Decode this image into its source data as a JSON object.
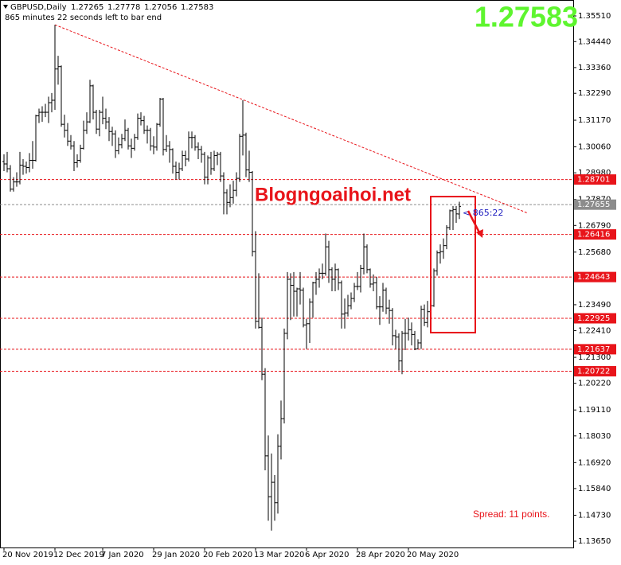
{
  "chart_data": {
    "type": "ohlc",
    "symbol": "GBPUSD,Daily",
    "timer_text": "865 minutes 22 seconds left to bar end",
    "countdown": "< 865:22",
    "watermark": "Blogngoaihoi.net",
    "spread_text": "Spread: 11 points.",
    "bar_color": "#000000",
    "price_color": "#5ef52f",
    "categories": [
      "20 Nov 2019",
      null,
      null,
      null,
      null,
      null,
      null,
      null,
      null,
      null,
      null,
      null,
      null,
      null,
      null,
      null,
      "12 Dec 2019",
      null,
      null,
      null,
      null,
      null,
      null,
      null,
      null,
      null,
      null,
      null,
      null,
      null,
      null,
      "7 Jan 2020",
      null,
      null,
      null,
      null,
      null,
      null,
      null,
      null,
      null,
      null,
      null,
      null,
      null,
      null,
      null,
      "29 Jan 2020",
      null,
      null,
      null,
      null,
      null,
      null,
      null,
      null,
      null,
      null,
      null,
      null,
      null,
      null,
      null,
      "20 Feb 2020",
      null,
      null,
      null,
      null,
      null,
      null,
      null,
      null,
      null,
      null,
      null,
      null,
      null,
      null,
      null,
      "13 Mar 2020",
      null,
      null,
      null,
      null,
      null,
      null,
      null,
      null,
      null,
      null,
      null,
      null,
      null,
      null,
      null,
      "6 Apr 2020",
      null,
      null,
      null,
      null,
      null,
      null,
      null,
      null,
      null,
      null,
      null,
      null,
      null,
      null,
      null,
      "28 Apr 2020",
      null,
      null,
      null,
      null,
      null,
      null,
      null,
      null,
      null,
      null,
      null,
      null,
      null,
      null,
      null,
      "20 May 2020",
      null,
      null,
      null,
      null,
      null,
      null,
      null,
      null,
      null,
      null,
      null,
      null,
      null,
      null,
      null,
      null
    ],
    "open": [
      1.2945,
      1.2935,
      1.2915,
      1.283,
      1.286,
      1.286,
      1.293,
      1.2925,
      1.292,
      1.295,
      1.295,
      1.3135,
      1.315,
      1.315,
      1.315,
      1.319,
      1.32,
      1.333,
      1.334,
      1.31,
      1.3075,
      1.303,
      1.301,
      1.294,
      1.295,
      1.3,
      1.3075,
      1.311,
      1.326,
      1.315,
      1.308,
      1.315,
      1.3125,
      1.311,
      1.307,
      1.306,
      1.299,
      1.3015,
      1.304,
      1.3075,
      1.301,
      1.3,
      1.3045,
      1.3125,
      1.3115,
      1.3075,
      1.3075,
      1.301,
      1.3005,
      1.31,
      1.3205,
      1.2995,
      1.301,
      1.2995,
      1.2925,
      1.29,
      1.2915,
      1.297,
      1.2955,
      1.3045,
      1.3045,
      1.3005,
      1.2995,
      1.2975,
      1.288,
      1.296,
      1.2915,
      1.297,
      1.2975,
      1.2885,
      1.2815,
      1.2775,
      1.2795,
      1.2825,
      1.2875,
      1.305,
      1.3055,
      1.291,
      1.29,
      1.257,
      1.228,
      1.2255,
      1.206,
      1.172,
      1.155,
      1.161,
      1.1525,
      1.176,
      1.1875,
      1.223,
      1.2455,
      1.243,
      1.2405,
      1.2415,
      1.241,
      1.2265,
      1.227,
      1.236,
      1.244,
      1.2455,
      1.248,
      1.248,
      1.259,
      1.2495,
      1.2455,
      1.2495,
      1.244,
      1.231,
      1.2315,
      1.2345,
      1.2375,
      1.2425,
      1.2425,
      1.25,
      1.259,
      1.2495,
      1.2435,
      1.244,
      1.234,
      1.234,
      1.241,
      1.2335,
      1.2325,
      1.222,
      1.2215,
      1.2115,
      1.223,
      1.223,
      1.2245,
      1.2225,
      1.2165,
      1.219,
      1.233,
      1.2275,
      1.232,
      1.2345,
      1.249,
      1.2565,
      1.257,
      1.2595,
      1.267,
      1.274,
      1.2745,
      1.27265
    ],
    "high": [
      1.2975,
      1.2985,
      1.293,
      1.288,
      1.29,
      1.2985,
      1.2955,
      1.2945,
      1.298,
      1.303,
      1.314,
      1.3165,
      1.3175,
      1.3185,
      1.3215,
      1.323,
      1.3514,
      1.3385,
      1.3345,
      1.314,
      1.3105,
      1.3055,
      1.303,
      1.2975,
      1.3015,
      1.3115,
      1.315,
      1.3285,
      1.3265,
      1.316,
      1.316,
      1.3215,
      1.3165,
      1.313,
      1.309,
      1.3075,
      1.3045,
      1.306,
      1.312,
      1.3085,
      1.304,
      1.306,
      1.3145,
      1.315,
      1.3135,
      1.3095,
      1.3085,
      1.305,
      1.3105,
      1.321,
      1.321,
      1.3055,
      1.303,
      1.3,
      1.2945,
      1.294,
      1.299,
      1.299,
      1.307,
      1.307,
      1.3055,
      1.3025,
      1.301,
      1.2985,
      1.297,
      1.2985,
      1.299,
      1.2985,
      1.2985,
      1.29,
      1.283,
      1.285,
      1.2865,
      1.29,
      1.306,
      1.32,
      1.3065,
      1.299,
      1.2905,
      1.2655,
      1.248,
      1.2295,
      1.2085,
      1.1805,
      1.173,
      1.164,
      1.181,
      1.195,
      1.225,
      1.2485,
      1.248,
      1.2485,
      1.242,
      1.2485,
      1.242,
      1.229,
      1.2375,
      1.2445,
      1.2485,
      1.25,
      1.252,
      1.2645,
      1.2615,
      1.2505,
      1.252,
      1.25,
      1.245,
      1.2375,
      1.239,
      1.24,
      1.244,
      1.2485,
      1.2515,
      1.2645,
      1.26,
      1.25,
      1.2475,
      1.2465,
      1.2385,
      1.244,
      1.242,
      1.237,
      1.2335,
      1.2245,
      1.223,
      1.224,
      1.229,
      1.2295,
      1.2275,
      1.224,
      1.2205,
      1.2345,
      1.235,
      1.2365,
      1.2375,
      1.25,
      1.2575,
      1.26,
      1.2625,
      1.268,
      1.2745,
      1.276,
      1.276,
      1.27778
    ],
    "low": [
      1.2905,
      1.29,
      1.282,
      1.282,
      1.284,
      1.285,
      1.289,
      1.2895,
      1.29,
      1.2915,
      1.2945,
      1.3105,
      1.311,
      1.313,
      1.3105,
      1.315,
      1.316,
      1.3265,
      1.309,
      1.3045,
      1.301,
      1.2995,
      1.2905,
      1.292,
      1.294,
      1.2995,
      1.306,
      1.3105,
      1.312,
      1.306,
      1.305,
      1.31,
      1.308,
      1.303,
      1.301,
      1.296,
      1.2975,
      1.3,
      1.303,
      1.2995,
      1.296,
      1.299,
      1.3035,
      1.3095,
      1.306,
      1.302,
      1.299,
      1.2975,
      1.299,
      1.309,
      1.297,
      1.2985,
      1.294,
      1.2895,
      1.287,
      1.287,
      1.2905,
      1.2925,
      1.2945,
      1.3,
      1.299,
      1.2955,
      1.294,
      1.285,
      1.285,
      1.289,
      1.2905,
      1.293,
      1.286,
      1.2725,
      1.2725,
      1.2755,
      1.277,
      1.28,
      1.286,
      1.297,
      1.288,
      1.286,
      1.255,
      1.225,
      1.225,
      1.2035,
      1.166,
      1.145,
      1.1409,
      1.145,
      1.148,
      1.1705,
      1.1855,
      1.2205,
      1.2285,
      1.23,
      1.23,
      1.235,
      1.2255,
      1.2165,
      1.219,
      1.2295,
      1.239,
      1.242,
      1.2455,
      1.247,
      1.244,
      1.2405,
      1.2405,
      1.241,
      1.225,
      1.225,
      1.23,
      1.233,
      1.236,
      1.241,
      1.24,
      1.2475,
      1.248,
      1.242,
      1.2405,
      1.233,
      1.2265,
      1.232,
      1.231,
      1.227,
      1.218,
      1.2165,
      1.2075,
      1.206,
      1.216,
      1.22,
      1.218,
      1.216,
      1.2165,
      1.2165,
      1.226,
      1.2255,
      1.229,
      1.234,
      1.247,
      1.252,
      1.254,
      1.258,
      1.266,
      1.266,
      1.269,
      1.27056
    ],
    "close": [
      1.2935,
      1.2915,
      1.283,
      1.286,
      1.286,
      1.293,
      1.2925,
      1.292,
      1.295,
      1.295,
      1.3135,
      1.315,
      1.315,
      1.315,
      1.319,
      1.32,
      1.333,
      1.334,
      1.31,
      1.3075,
      1.303,
      1.301,
      1.294,
      1.295,
      1.3,
      1.3075,
      1.311,
      1.326,
      1.315,
      1.308,
      1.315,
      1.3125,
      1.311,
      1.307,
      1.306,
      1.299,
      1.3015,
      1.304,
      1.3075,
      1.301,
      1.3,
      1.3045,
      1.3125,
      1.3115,
      1.3075,
      1.3075,
      1.301,
      1.3005,
      1.31,
      1.3205,
      1.2995,
      1.301,
      1.2995,
      1.2925,
      1.29,
      1.2915,
      1.297,
      1.2955,
      1.3045,
      1.3045,
      1.3005,
      1.2995,
      1.2975,
      1.288,
      1.296,
      1.2915,
      1.297,
      1.2975,
      1.2885,
      1.2815,
      1.2775,
      1.2795,
      1.2825,
      1.2875,
      1.305,
      1.3055,
      1.291,
      1.29,
      1.257,
      1.228,
      1.2255,
      1.206,
      1.172,
      1.155,
      1.161,
      1.1525,
      1.176,
      1.1875,
      1.223,
      1.2455,
      1.243,
      1.2405,
      1.2415,
      1.241,
      1.2265,
      1.227,
      1.236,
      1.244,
      1.2455,
      1.248,
      1.248,
      1.259,
      1.2495,
      1.2455,
      1.2495,
      1.244,
      1.231,
      1.2315,
      1.2345,
      1.2375,
      1.2425,
      1.2425,
      1.25,
      1.259,
      1.2495,
      1.2435,
      1.244,
      1.234,
      1.234,
      1.241,
      1.2335,
      1.2325,
      1.222,
      1.2215,
      1.2115,
      1.223,
      1.223,
      1.2245,
      1.2225,
      1.2165,
      1.219,
      1.233,
      1.2275,
      1.232,
      1.2345,
      1.249,
      1.2565,
      1.257,
      1.2595,
      1.267,
      1.274,
      1.2745,
      1.2727,
      1.27583
    ],
    "ylim": [
      1.13387,
      1.36172
    ],
    "yticks": [
      {
        "value": 1.3551,
        "label": "1.35510"
      },
      {
        "value": 1.3444,
        "label": "1.34440"
      },
      {
        "value": 1.3336,
        "label": "1.33360"
      },
      {
        "value": 1.3229,
        "label": "1.32290"
      },
      {
        "value": 1.3117,
        "label": "1.31170"
      },
      {
        "value": 1.3006,
        "label": "1.30060"
      },
      {
        "value": 1.2898,
        "label": "1.28980"
      },
      {
        "value": 1.2787,
        "label": "1.27870"
      },
      {
        "value": 1.2679,
        "label": "1.26790"
      },
      {
        "value": 1.2568,
        "label": "1.25680"
      },
      {
        "value": 1.2349,
        "label": "1.23490"
      },
      {
        "value": 1.2241,
        "label": "1.22410"
      },
      {
        "value": 1.213,
        "label": "1.21300"
      },
      {
        "value": 1.2022,
        "label": "1.20220"
      },
      {
        "value": 1.1911,
        "label": "1.19110"
      },
      {
        "value": 1.1803,
        "label": "1.18030"
      },
      {
        "value": 1.1692,
        "label": "1.16920"
      },
      {
        "value": 1.1584,
        "label": "1.15840"
      },
      {
        "value": 1.1473,
        "label": "1.14730"
      },
      {
        "value": 1.1365,
        "label": "1.13650"
      }
    ],
    "levels": [
      {
        "value": 1.28701,
        "color": "#e8141a"
      },
      {
        "value": 1.27655,
        "color": "#8c8c8c"
      },
      {
        "value": 1.26416,
        "color": "#e8141a"
      },
      {
        "value": 1.24643,
        "color": "#e8141a"
      },
      {
        "value": 1.22925,
        "color": "#e8141a"
      },
      {
        "value": 1.21637,
        "color": "#e8141a"
      },
      {
        "value": 1.20722,
        "color": "#e8141a"
      }
    ],
    "trendline": {
      "x": [
        16,
        164.5
      ],
      "y": [
        1.3514,
        1.273
      ],
      "color": "#e8141a"
    },
    "rectangle": {
      "x": [
        134,
        148
      ],
      "y": [
        1.2233,
        1.2799
      ],
      "color": "#e8141a"
    }
  }
}
